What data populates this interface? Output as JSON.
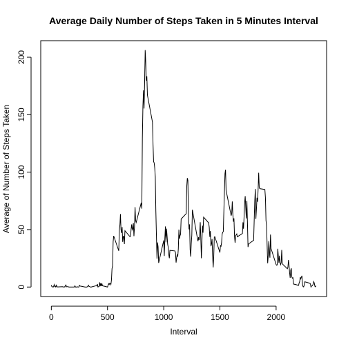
{
  "chart_data": {
    "type": "line",
    "title": "Average Daily Number of Steps Taken in 5 Minutes Interval",
    "xlabel": "Interval",
    "ylabel": "Average of Number of Steps Taken",
    "color": "#000000",
    "x": [
      0,
      5,
      10,
      15,
      20,
      25,
      30,
      35,
      40,
      45,
      50,
      55,
      100,
      105,
      110,
      115,
      120,
      125,
      130,
      135,
      140,
      145,
      150,
      155,
      200,
      205,
      210,
      215,
      220,
      225,
      230,
      235,
      240,
      245,
      250,
      255,
      300,
      305,
      310,
      315,
      320,
      325,
      330,
      335,
      340,
      345,
      350,
      355,
      400,
      405,
      410,
      415,
      420,
      425,
      430,
      435,
      440,
      445,
      450,
      455,
      500,
      505,
      510,
      515,
      520,
      525,
      530,
      535,
      540,
      545,
      550,
      555,
      600,
      605,
      610,
      615,
      620,
      625,
      630,
      635,
      640,
      645,
      650,
      655,
      700,
      705,
      710,
      715,
      720,
      725,
      730,
      735,
      740,
      745,
      750,
      755,
      800,
      805,
      810,
      815,
      820,
      825,
      830,
      835,
      840,
      845,
      850,
      855,
      900,
      905,
      910,
      915,
      920,
      925,
      930,
      935,
      940,
      945,
      950,
      955,
      1000,
      1005,
      1010,
      1015,
      1020,
      1025,
      1030,
      1035,
      1040,
      1045,
      1050,
      1055,
      1100,
      1105,
      1110,
      1115,
      1120,
      1125,
      1130,
      1135,
      1140,
      1145,
      1150,
      1155,
      1200,
      1205,
      1210,
      1215,
      1220,
      1225,
      1230,
      1235,
      1240,
      1245,
      1250,
      1255,
      1300,
      1305,
      1310,
      1315,
      1320,
      1325,
      1330,
      1335,
      1340,
      1345,
      1350,
      1355,
      1400,
      1405,
      1410,
      1415,
      1420,
      1425,
      1430,
      1435,
      1440,
      1445,
      1450,
      1455,
      1500,
      1505,
      1510,
      1515,
      1520,
      1525,
      1530,
      1535,
      1540,
      1545,
      1550,
      1555,
      1600,
      1605,
      1610,
      1615,
      1620,
      1625,
      1630,
      1635,
      1640,
      1645,
      1650,
      1655,
      1700,
      1705,
      1710,
      1715,
      1720,
      1725,
      1730,
      1735,
      1740,
      1745,
      1750,
      1755,
      1800,
      1805,
      1810,
      1815,
      1820,
      1825,
      1830,
      1835,
      1840,
      1845,
      1850,
      1855,
      1900,
      1905,
      1910,
      1915,
      1920,
      1925,
      1930,
      1935,
      1940,
      1945,
      1950,
      1955,
      2000,
      2005,
      2010,
      2015,
      2020,
      2025,
      2030,
      2035,
      2040,
      2045,
      2050,
      2055,
      2100,
      2105,
      2110,
      2115,
      2120,
      2125,
      2130,
      2135,
      2140,
      2145,
      2150,
      2155,
      2200,
      2205,
      2210,
      2215,
      2220,
      2225,
      2230,
      2235,
      2240,
      2245,
      2250,
      2255,
      2300,
      2305,
      2310,
      2315,
      2320,
      2325,
      2330,
      2335,
      2340,
      2345,
      2350,
      2355
    ],
    "values": [
      1.7,
      0.3,
      0.1,
      0.2,
      0.1,
      2.1,
      0.5,
      0.9,
      0,
      1.5,
      0.3,
      0.1,
      0.3,
      0,
      0.1,
      0.3,
      0,
      1.1,
      1.8,
      0.2,
      0.2,
      0.4,
      0.3,
      0,
      0,
      0,
      1.1,
      0,
      0,
      0.1,
      0,
      0.2,
      0,
      0,
      1.5,
      0.9,
      0,
      0,
      0,
      0,
      0.2,
      0.6,
      1.6,
      0.6,
      0.5,
      0.1,
      0,
      0,
      1.2,
      0.9,
      2.6,
      0,
      0.3,
      0.4,
      4.1,
      0.7,
      3.5,
      0.8,
      3.1,
      1.1,
      0,
      1.6,
      3,
      2.2,
      3.3,
      3,
      2.1,
      6.1,
      16,
      18.3,
      39.5,
      44.5,
      31.5,
      49.3,
      53.8,
      63.5,
      50,
      47.1,
      52.2,
      39.3,
      44,
      44.2,
      37.4,
      49,
      43.8,
      44.4,
      50.5,
      54.5,
      49.9,
      51,
      55.7,
      44.3,
      52.3,
      69.5,
      57.8,
      56.2,
      73.4,
      68.2,
      129.4,
      157.5,
      171.2,
      155.4,
      177.3,
      206.2,
      195.9,
      179.6,
      183.4,
      167,
      143.5,
      124,
      109.1,
      108.1,
      103.7,
      96,
      66.2,
      45.2,
      24.8,
      38.8,
      35,
      21,
      40.6,
      27,
      42.4,
      52.7,
      38.9,
      50.8,
      44.3,
      37.4,
      34.7,
      28.3,
      25.1,
      31.9,
      31.4,
      29.7,
      21.3,
      25.5,
      28.4,
      26.5,
      33.4,
      50,
      42,
      44.6,
      46,
      59.2,
      63.9,
      87.7,
      94.8,
      92.8,
      63.4,
      50.2,
      54.5,
      32.4,
      26.5,
      37.7,
      45.1,
      67.3,
      42.3,
      39.9,
      43.3,
      40.9,
      46.2,
      56.4,
      42.8,
      25.1,
      39.9,
      53.5,
      47.3,
      60.8,
      55.8,
      52,
      43.6,
      48.7,
      35.5,
      37.5,
      41.8,
      27.5,
      17.1,
      26.1,
      43.6,
      43.8,
      30,
      36.1,
      35.5,
      38.8,
      46,
      47.8,
      48.1,
      65.3,
      82.9,
      98.7,
      102.1,
      84,
      62.1,
      64.1,
      74.5,
      63.2,
      56.9,
      59.8,
      43.9,
      38.6,
      44.7,
      45.5,
      46.2,
      43.7,
      46.6,
      56.3,
      50.7,
      61.2,
      73.4,
      79.1,
      68.9,
      59.7,
      75.1,
      56.5,
      34.8,
      37.5,
      40.7,
      58,
      74.7,
      85.3,
      59.3,
      67.8,
      77.7,
      74.2,
      85.3,
      99.5,
      86.6,
      85.6,
      84.9,
      77.8,
      58,
      53.4,
      36.3,
      20.7,
      27.4,
      40,
      30.2,
      25.5,
      45.7,
      33.5,
      19.6,
      19,
      19.3,
      33.3,
      26.8,
      21.2,
      27.3,
      21.3,
      19.5,
      21.3,
      32.3,
      20.2,
      15.9,
      17.2,
      23.5,
      19.2,
      12.5,
      8,
      14.7,
      16.3,
      8.7,
      7.8,
      8.1,
      2.6,
      1.5,
      3.7,
      4.8,
      8.5,
      7.1,
      8.7,
      9.8,
      2.2,
      0.3,
      0.1,
      1.6,
      4.6,
      3.3,
      2.8,
      0,
      0.8,
      1,
      1.6,
      2.6,
      4.7,
      3.3,
      0.6,
      0.2,
      1.1
    ],
    "xlim": [
      -94.2,
      2449.2
    ],
    "ylim": [
      -8.25,
      214.4
    ],
    "xticks": [
      0,
      500,
      1000,
      1500,
      2000
    ],
    "yticks": [
      0,
      50,
      100,
      150,
      200
    ]
  }
}
